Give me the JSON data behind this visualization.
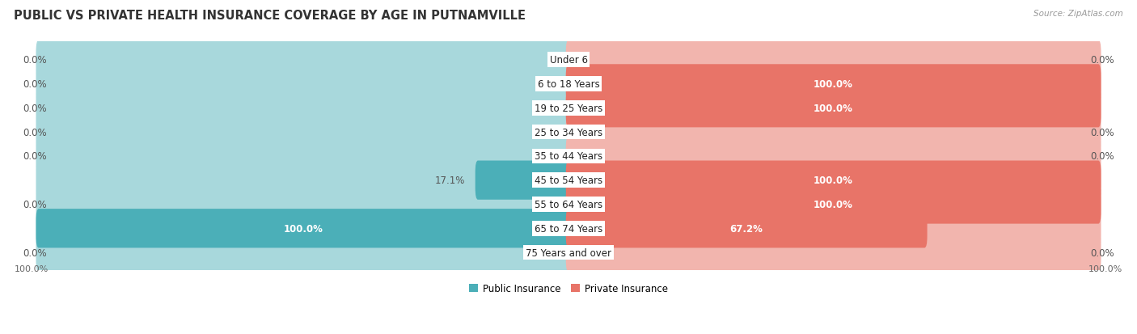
{
  "title": "PUBLIC VS PRIVATE HEALTH INSURANCE COVERAGE BY AGE IN PUTNAMVILLE",
  "source": "Source: ZipAtlas.com",
  "categories": [
    "Under 6",
    "6 to 18 Years",
    "19 to 25 Years",
    "25 to 34 Years",
    "35 to 44 Years",
    "45 to 54 Years",
    "55 to 64 Years",
    "65 to 74 Years",
    "75 Years and over"
  ],
  "public_values": [
    0.0,
    0.0,
    0.0,
    0.0,
    0.0,
    17.1,
    0.0,
    100.0,
    0.0
  ],
  "private_values": [
    0.0,
    100.0,
    100.0,
    0.0,
    0.0,
    100.0,
    100.0,
    67.2,
    0.0
  ],
  "public_color": "#4BAFB8",
  "private_color": "#E87468",
  "public_color_light": "#A8D8DC",
  "private_color_light": "#F2B5AE",
  "row_bg_color": "#F0F0F2",
  "row_border_color": "#DDDDDD",
  "max_value": 100.0,
  "title_fontsize": 10.5,
  "label_fontsize": 8.5,
  "cat_fontsize": 8.5,
  "legend_fontsize": 8.5,
  "axis_label_fontsize": 8
}
